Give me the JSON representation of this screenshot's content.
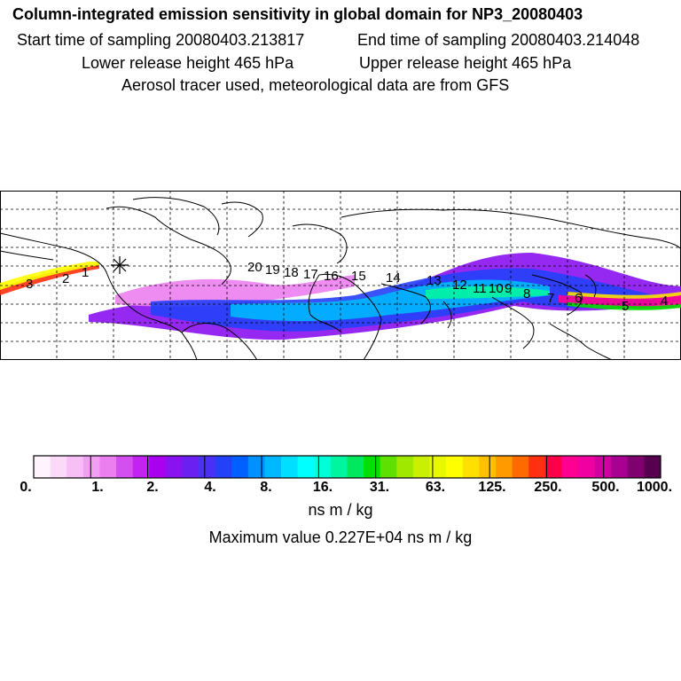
{
  "header": {
    "title": "Column-integrated emission sensitivity in global domain for NP3_20080403",
    "start_label": "Start time of sampling 20080403.213817",
    "end_label": "End time of sampling 20080403.214048",
    "lower_label": "Lower release height  465 hPa",
    "upper_label": "Upper release height  465 hPa",
    "tracer_note": "Aerosol tracer used, meteorological data are from GFS"
  },
  "map": {
    "time_markers": [
      "3",
      "2",
      "1",
      "20",
      "19",
      "18",
      "17",
      "16",
      "15",
      "14",
      "13",
      "12",
      "11",
      "10",
      "9",
      "8",
      "7",
      "6",
      "5",
      "4"
    ],
    "release_point_icon": "asterisk-icon"
  },
  "colorbar": {
    "tick_labels": [
      "0.",
      "1.",
      "2.",
      "4.",
      "8.",
      "16.",
      "31.",
      "63.",
      "125.",
      "250.",
      "500.",
      "1000."
    ],
    "colors": [
      "#fff3fd",
      "#fbd9f8",
      "#f7bff5",
      "#f19ff2",
      "#ec7ff0",
      "#d34ff0",
      "#c322f0",
      "#aa00f0",
      "#8a12f0",
      "#6a20f0",
      "#4a30f5",
      "#2440f8",
      "#0060ff",
      "#0090ff",
      "#00b8ff",
      "#00dfff",
      "#00ffff",
      "#00ffd8",
      "#00f5a0",
      "#00e860",
      "#00e000",
      "#60e000",
      "#a0e800",
      "#c8f000",
      "#e8f800",
      "#ffff00",
      "#ffe000",
      "#ffc000",
      "#ff9a00",
      "#ff6a00",
      "#ff3010",
      "#ff0048",
      "#ff0090",
      "#f000a0",
      "#d000a0",
      "#a80090",
      "#800070",
      "#580050"
    ],
    "unit": "ns m / kg",
    "max_value_label": "Maximum value  0.227E+04 ns m / kg"
  }
}
